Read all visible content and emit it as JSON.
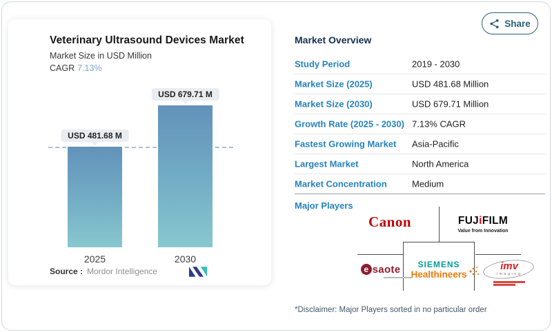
{
  "share": {
    "label": "Share"
  },
  "chart": {
    "title": "Veterinary Ultrasound Devices Market",
    "subtitle": "Market Size in USD Million",
    "cagr_label": "CAGR",
    "cagr_value": "7.13%",
    "source_label": "Source :",
    "source_value": "Mordor Intelligence",
    "bars": [
      {
        "year": "2025",
        "annotation": "USD 481.68 M"
      },
      {
        "year": "2030",
        "annotation": "USD 679.71 M"
      }
    ]
  },
  "chart_data": {
    "type": "bar",
    "title": "Veterinary Ultrasound Devices Market",
    "ylabel": "Market Size in USD Million",
    "categories": [
      "2025",
      "2030"
    ],
    "values": [
      481.68,
      679.71
    ],
    "annotations": [
      "USD 481.68 M",
      "USD 679.71 M"
    ],
    "reference_line": 481.68,
    "ylim": [
      0,
      679.71
    ],
    "grid": false,
    "bar_gradient": [
      "#6292ba",
      "#87c8cf"
    ],
    "cagr": "7.13%"
  },
  "overview": {
    "title": "Market Overview",
    "rows": [
      {
        "label": "Study Period",
        "value": "2019 - 2030"
      },
      {
        "label": "Market Size (2025)",
        "value": "USD 481.68 Million"
      },
      {
        "label": "Market Size (2030)",
        "value": "USD 679.71 Million"
      },
      {
        "label": "Growth Rate (2025 - 2030)",
        "value": "7.13% CAGR"
      },
      {
        "label": "Fastest Growing Market",
        "value": "Asia-Pacific"
      },
      {
        "label": "Largest Market",
        "value": "North America"
      },
      {
        "label": "Market Concentration",
        "value": "Medium"
      }
    ],
    "major_players_label": "Major Players",
    "players": [
      "Canon",
      "FUJIFILM",
      "esaote",
      "SIEMENS Healthineers",
      "IMV imaging"
    ],
    "disclaimer": "*Disclaimer: Major Players sorted in no particular order"
  },
  "logos": {
    "canon": "Canon",
    "fujifilm_pre": "FUJ",
    "fujifilm_i": "i",
    "fujifilm_post": "FILM",
    "fujifilm_tagline": "Value from Innovation",
    "esaote_e": "e",
    "esaote_rest": "saote",
    "siemens": "SIEMENS",
    "healthineers": "Healthineers",
    "imv": "imv",
    "imv_sub": "imaging"
  },
  "colors": {
    "accent_blue": "#2583bd",
    "header_navy": "#142f52",
    "cagr_blue": "#7ba7d7",
    "share_teal": "#2b5f79",
    "bar_top": "#6292ba",
    "bar_bottom": "#87c8cf",
    "canon_red": "#bf0404",
    "fuji_red": "#e60012",
    "siemens_teal": "#009e9b",
    "healthineers_orange": "#ec7a08",
    "esaote_red": "#8c1d2f",
    "imv_red": "#d61f26"
  }
}
